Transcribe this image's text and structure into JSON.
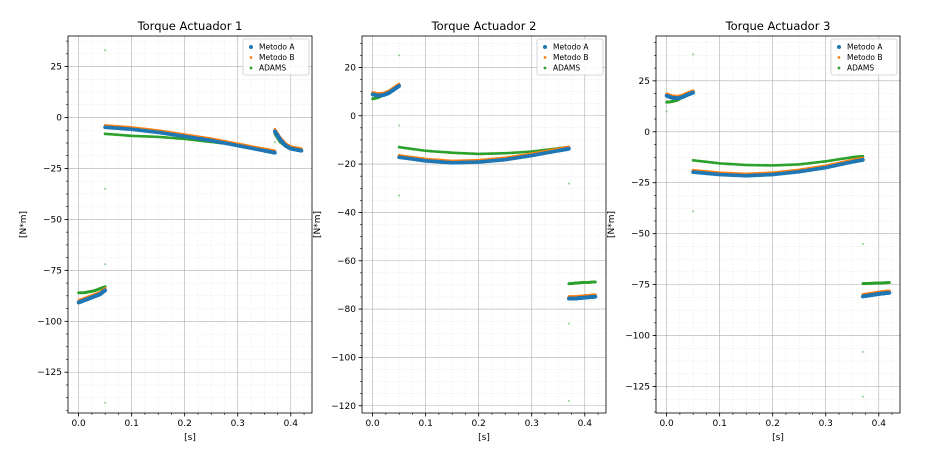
{
  "chart_data": [
    {
      "type": "scatter",
      "title": "Torque Actuador 1",
      "xlabel": "[s]",
      "ylabel": "[N*m]",
      "xlim": [
        -0.02,
        0.44
      ],
      "ylim": [
        -145,
        40
      ],
      "xticks": [
        0.0,
        0.1,
        0.2,
        0.3,
        0.4
      ],
      "xtick_labels": [
        "0.0",
        "0.1",
        "0.2",
        "0.3",
        "0.4"
      ],
      "yticks": [
        25,
        0,
        -25,
        -50,
        -75,
        -100,
        -125
      ],
      "ytick_labels": [
        "25",
        "0",
        "−25",
        "−50",
        "−75",
        "−100",
        "−125"
      ],
      "grid": true,
      "legend": "top-right",
      "series": [
        {
          "name": "Metodo A",
          "color": "#1f77b4",
          "segments": [
            {
              "x": [
                0.0,
                0.01,
                0.02,
                0.03,
                0.04,
                0.05
              ],
              "y": [
                -90,
                -89,
                -88,
                -87,
                -86,
                -84
              ]
            },
            {
              "x": [
                0.05,
                0.1,
                0.15,
                0.2,
                0.25,
                0.3,
                0.35,
                0.37
              ],
              "y": [
                -4,
                -5,
                -6.5,
                -8.5,
                -10.5,
                -13,
                -15.5,
                -16.5
              ]
            },
            {
              "x": [
                0.37,
                0.38,
                0.39,
                0.4,
                0.41,
                0.42
              ],
              "y": [
                -6,
                -10,
                -13,
                -14.5,
                -15,
                -15.5
              ]
            }
          ]
        },
        {
          "name": "Metodo B",
          "color": "#ff7f0e",
          "segments": [
            {
              "x": [
                0.0,
                0.01,
                0.02,
                0.03,
                0.04,
                0.05
              ],
              "y": [
                -90,
                -89,
                -88,
                -87,
                -86,
                -84
              ]
            },
            {
              "x": [
                0.05,
                0.1,
                0.15,
                0.2,
                0.25,
                0.3,
                0.35,
                0.37
              ],
              "y": [
                -4,
                -5,
                -6.5,
                -8.5,
                -10.5,
                -13,
                -15.5,
                -16.5
              ]
            },
            {
              "x": [
                0.37,
                0.38,
                0.39,
                0.4,
                0.41,
                0.42
              ],
              "y": [
                -6,
                -10,
                -13,
                -14.5,
                -15,
                -15.5
              ]
            }
          ]
        },
        {
          "name": "ADAMS",
          "color": "#2ca02c",
          "segments": [
            {
              "x": [
                0.0,
                0.01,
                0.02,
                0.03,
                0.04,
                0.05
              ],
              "y": [
                -86,
                -86,
                -85.5,
                -85,
                -84,
                -83
              ]
            },
            {
              "x": [
                0.05,
                0.1,
                0.15,
                0.2,
                0.25,
                0.3,
                0.35,
                0.37
              ],
              "y": [
                -8,
                -9,
                -9.5,
                -10.5,
                -12,
                -13.5,
                -15.5,
                -17
              ]
            },
            {
              "x": [
                0.37,
                0.38,
                0.39,
                0.4,
                0.41,
                0.42
              ],
              "y": [
                -8,
                -12,
                -14,
                -15,
                -15.5,
                -16
              ]
            }
          ]
        }
      ],
      "outliers": {
        "x": [
          0.05,
          0.05,
          0.05,
          0.05,
          0.37
        ],
        "y": [
          33,
          -35,
          -72,
          -140,
          -12
        ]
      }
    },
    {
      "type": "scatter",
      "title": "Torque Actuador 2",
      "xlabel": "[s]",
      "ylabel": "[N*m]",
      "xlim": [
        -0.02,
        0.44
      ],
      "ylim": [
        -123,
        33
      ],
      "xticks": [
        0.0,
        0.1,
        0.2,
        0.3,
        0.4
      ],
      "xtick_labels": [
        "0.0",
        "0.1",
        "0.2",
        "0.3",
        "0.4"
      ],
      "yticks": [
        20,
        0,
        -20,
        -40,
        -60,
        -80,
        -100,
        -120
      ],
      "ytick_labels": [
        "20",
        "0",
        "−20",
        "−40",
        "−60",
        "−80",
        "−100",
        "−120"
      ],
      "grid": true,
      "legend": "top-right",
      "series": [
        {
          "name": "Metodo A",
          "color": "#1f77b4",
          "segments": [
            {
              "x": [
                0.0,
                0.01,
                0.02,
                0.03,
                0.04,
                0.05
              ],
              "y": [
                9.5,
                9,
                9.2,
                10,
                11.5,
                13
              ]
            },
            {
              "x": [
                0.05,
                0.1,
                0.15,
                0.2,
                0.25,
                0.3,
                0.35,
                0.37
              ],
              "y": [
                -16.5,
                -18,
                -18.8,
                -18.5,
                -17.5,
                -15.8,
                -13.8,
                -13
              ]
            },
            {
              "x": [
                0.37,
                0.38,
                0.39,
                0.4,
                0.41,
                0.42
              ],
              "y": [
                -75,
                -75,
                -74.8,
                -74.6,
                -74.4,
                -74.2
              ]
            }
          ]
        },
        {
          "name": "Metodo B",
          "color": "#ff7f0e",
          "segments": [
            {
              "x": [
                0.0,
                0.01,
                0.02,
                0.03,
                0.04,
                0.05
              ],
              "y": [
                9.5,
                9,
                9.2,
                10,
                11.5,
                13
              ]
            },
            {
              "x": [
                0.05,
                0.1,
                0.15,
                0.2,
                0.25,
                0.3,
                0.35,
                0.37
              ],
              "y": [
                -16.5,
                -18,
                -18.8,
                -18.5,
                -17.5,
                -15.8,
                -13.8,
                -13
              ]
            },
            {
              "x": [
                0.37,
                0.38,
                0.39,
                0.4,
                0.41,
                0.42
              ],
              "y": [
                -75,
                -75,
                -74.8,
                -74.6,
                -74.4,
                -74.2
              ]
            }
          ]
        },
        {
          "name": "ADAMS",
          "color": "#2ca02c",
          "segments": [
            {
              "x": [
                0.0,
                0.01,
                0.02,
                0.03,
                0.04,
                0.05
              ],
              "y": [
                7,
                7.5,
                8.5,
                9.5,
                11,
                12.5
              ]
            },
            {
              "x": [
                0.05,
                0.1,
                0.15,
                0.2,
                0.25,
                0.3,
                0.35,
                0.37
              ],
              "y": [
                -13,
                -14.5,
                -15.3,
                -15.8,
                -15.5,
                -14.8,
                -13.5,
                -13
              ]
            },
            {
              "x": [
                0.37,
                0.38,
                0.39,
                0.4,
                0.41,
                0.42
              ],
              "y": [
                -69.5,
                -69.3,
                -69.1,
                -69,
                -68.9,
                -68.8
              ]
            }
          ]
        }
      ],
      "outliers": {
        "x": [
          0.05,
          0.05,
          0.05,
          0.37,
          0.37,
          0.37
        ],
        "y": [
          25,
          -4,
          -33,
          -28,
          -86,
          -118
        ]
      }
    },
    {
      "type": "scatter",
      "title": "Torque Actuador 3",
      "xlabel": "[s]",
      "ylabel": "[N*m]",
      "xlim": [
        -0.02,
        0.44
      ],
      "ylim": [
        -138,
        47
      ],
      "xticks": [
        0.0,
        0.1,
        0.2,
        0.3,
        0.4
      ],
      "xtick_labels": [
        "0.0",
        "0.1",
        "0.2",
        "0.3",
        "0.4"
      ],
      "yticks": [
        25,
        0,
        -25,
        -50,
        -75,
        -100,
        -125
      ],
      "ytick_labels": [
        "25",
        "0",
        "−25",
        "−50",
        "−75",
        "−100",
        "−125"
      ],
      "grid": true,
      "legend": "top-right",
      "series": [
        {
          "name": "Metodo A",
          "color": "#1f77b4",
          "segments": [
            {
              "x": [
                0.0,
                0.01,
                0.02,
                0.03,
                0.04,
                0.05
              ],
              "y": [
                18.5,
                17.5,
                17.2,
                17.8,
                19,
                20
              ]
            },
            {
              "x": [
                0.05,
                0.1,
                0.15,
                0.2,
                0.25,
                0.3,
                0.35,
                0.37
              ],
              "y": [
                -19,
                -20.2,
                -20.8,
                -20.2,
                -18.8,
                -16.8,
                -14,
                -13
              ]
            },
            {
              "x": [
                0.37,
                0.38,
                0.39,
                0.4,
                0.41,
                0.42
              ],
              "y": [
                -80,
                -79.6,
                -79.2,
                -78.8,
                -78.5,
                -78.2
              ]
            }
          ]
        },
        {
          "name": "Metodo B",
          "color": "#ff7f0e",
          "segments": [
            {
              "x": [
                0.0,
                0.01,
                0.02,
                0.03,
                0.04,
                0.05
              ],
              "y": [
                18.5,
                17.5,
                17.2,
                17.8,
                19,
                20
              ]
            },
            {
              "x": [
                0.05,
                0.1,
                0.15,
                0.2,
                0.25,
                0.3,
                0.35,
                0.37
              ],
              "y": [
                -19,
                -20.2,
                -20.8,
                -20.2,
                -18.8,
                -16.8,
                -14,
                -13
              ]
            },
            {
              "x": [
                0.37,
                0.38,
                0.39,
                0.4,
                0.41,
                0.42
              ],
              "y": [
                -80,
                -79.6,
                -79.2,
                -78.8,
                -78.5,
                -78.2
              ]
            }
          ]
        },
        {
          "name": "ADAMS",
          "color": "#2ca02c",
          "segments": [
            {
              "x": [
                0.0,
                0.01,
                0.02,
                0.03,
                0.04,
                0.05
              ],
              "y": [
                14.5,
                14.8,
                15.5,
                17,
                18.5,
                20
              ]
            },
            {
              "x": [
                0.05,
                0.1,
                0.15,
                0.2,
                0.25,
                0.3,
                0.35,
                0.37
              ],
              "y": [
                -14,
                -15.5,
                -16.3,
                -16.5,
                -16,
                -14.5,
                -12.5,
                -12
              ]
            },
            {
              "x": [
                0.37,
                0.38,
                0.39,
                0.4,
                0.41,
                0.42
              ],
              "y": [
                -74.5,
                -74.4,
                -74.3,
                -74.2,
                -74.1,
                -74
              ]
            }
          ]
        }
      ],
      "outliers": {
        "x": [
          0.0,
          0.05,
          0.05,
          0.37,
          0.37,
          0.37
        ],
        "y": [
          10,
          38,
          -39,
          -55,
          -108,
          -130
        ]
      }
    }
  ]
}
